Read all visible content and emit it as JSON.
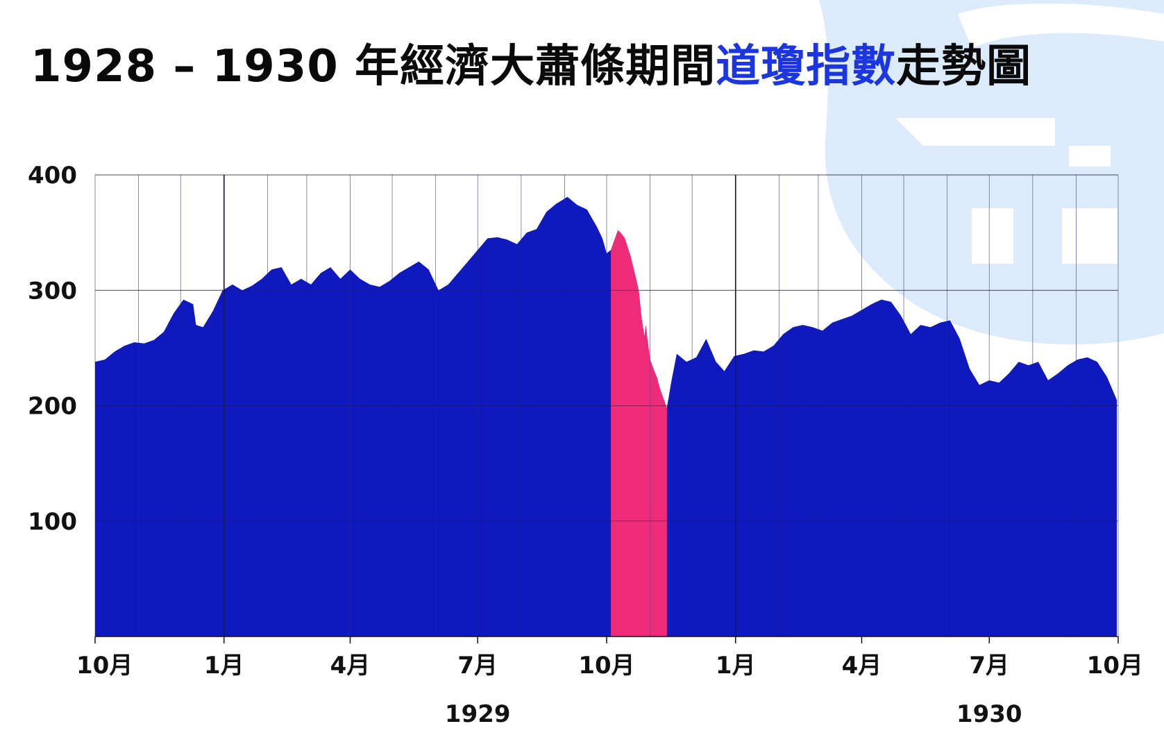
{
  "title": {
    "part1": "1928 – 1930 年經濟大蕭條期間",
    "highlight": "道瓊指數",
    "part2": "走勢圖"
  },
  "colors": {
    "area": "#0f19bd",
    "crash": "#ee2b78",
    "title_highlight": "#1b35e0",
    "watermark": "#dcebfb",
    "grid": "#9a9aaa"
  },
  "chart_data": {
    "type": "area",
    "title": "1928 – 1930 年經濟大蕭條期間道瓊指數走勢圖",
    "xlabel": "",
    "ylabel": "",
    "ylim": [
      0,
      400
    ],
    "y_ticks": [
      100,
      200,
      300,
      400
    ],
    "y_tick_labels": [
      "100",
      "200",
      "300",
      "400"
    ],
    "x_ticks": [
      {
        "label": "10月",
        "date": "1928-10-01"
      },
      {
        "label": "1月",
        "date": "1929-01-01"
      },
      {
        "label": "4月",
        "date": "1929-04-01"
      },
      {
        "label": "7月",
        "date": "1929-07-01"
      },
      {
        "label": "10月",
        "date": "1929-10-01"
      },
      {
        "label": "1月",
        "date": "1930-01-01"
      },
      {
        "label": "4月",
        "date": "1930-04-01"
      },
      {
        "label": "7月",
        "date": "1930-07-01"
      },
      {
        "label": "10月",
        "date": "1930-10-01"
      }
    ],
    "year_labels": [
      {
        "label": "1929",
        "date": "1929-07-01"
      },
      {
        "label": "1930",
        "date": "1930-07-01"
      }
    ],
    "grid": true,
    "crash_highlight": {
      "start": "1929-10-04",
      "end": "1929-11-13"
    },
    "series": [
      {
        "points": [
          [
            "1928-10-01",
            238
          ],
          [
            "1928-10-08",
            240
          ],
          [
            "1928-10-15",
            247
          ],
          [
            "1928-10-22",
            252
          ],
          [
            "1928-10-29",
            255
          ],
          [
            "1928-11-05",
            254
          ],
          [
            "1928-11-12",
            257
          ],
          [
            "1928-11-19",
            264
          ],
          [
            "1928-11-26",
            280
          ],
          [
            "1928-12-03",
            292
          ],
          [
            "1928-12-10",
            288
          ],
          [
            "1928-12-12",
            270
          ],
          [
            "1928-12-17",
            268
          ],
          [
            "1928-12-24",
            282
          ],
          [
            "1928-12-31",
            300
          ],
          [
            "1929-01-07",
            305
          ],
          [
            "1929-01-14",
            300
          ],
          [
            "1929-01-21",
            304
          ],
          [
            "1929-01-28",
            310
          ],
          [
            "1929-02-04",
            318
          ],
          [
            "1929-02-11",
            320
          ],
          [
            "1929-02-18",
            305
          ],
          [
            "1929-02-25",
            310
          ],
          [
            "1929-03-04",
            305
          ],
          [
            "1929-03-11",
            315
          ],
          [
            "1929-03-18",
            320
          ],
          [
            "1929-03-25",
            310
          ],
          [
            "1929-04-01",
            318
          ],
          [
            "1929-04-08",
            310
          ],
          [
            "1929-04-15",
            305
          ],
          [
            "1929-04-22",
            303
          ],
          [
            "1929-04-29",
            308
          ],
          [
            "1929-05-06",
            315
          ],
          [
            "1929-05-13",
            320
          ],
          [
            "1929-05-20",
            325
          ],
          [
            "1929-05-27",
            318
          ],
          [
            "1929-06-03",
            300
          ],
          [
            "1929-06-10",
            305
          ],
          [
            "1929-06-17",
            315
          ],
          [
            "1929-06-24",
            325
          ],
          [
            "1929-07-01",
            335
          ],
          [
            "1929-07-08",
            345
          ],
          [
            "1929-07-15",
            346
          ],
          [
            "1929-07-22",
            344
          ],
          [
            "1929-07-29",
            340
          ],
          [
            "1929-08-05",
            350
          ],
          [
            "1929-08-12",
            353
          ],
          [
            "1929-08-19",
            368
          ],
          [
            "1929-08-26",
            375
          ],
          [
            "1929-09-03",
            381
          ],
          [
            "1929-09-10",
            374
          ],
          [
            "1929-09-17",
            370
          ],
          [
            "1929-09-24",
            355
          ],
          [
            "1929-09-28",
            345
          ],
          [
            "1929-10-01",
            332
          ],
          [
            "1929-10-04",
            335
          ],
          [
            "1929-10-09",
            352
          ],
          [
            "1929-10-11",
            350
          ],
          [
            "1929-10-14",
            345
          ],
          [
            "1929-10-18",
            330
          ],
          [
            "1929-10-22",
            310
          ],
          [
            "1929-10-24",
            299
          ],
          [
            "1929-10-26",
            275
          ],
          [
            "1929-10-28",
            260
          ],
          [
            "1929-10-29",
            270
          ],
          [
            "1929-10-30",
            258
          ],
          [
            "1929-11-01",
            240
          ],
          [
            "1929-11-04",
            230
          ],
          [
            "1929-11-06",
            224
          ],
          [
            "1929-11-08",
            215
          ],
          [
            "1929-11-13",
            198
          ],
          [
            "1929-11-16",
            220
          ],
          [
            "1929-11-20",
            245
          ],
          [
            "1929-11-27",
            238
          ],
          [
            "1929-12-04",
            242
          ],
          [
            "1929-12-11",
            258
          ],
          [
            "1929-12-18",
            238
          ],
          [
            "1929-12-24",
            230
          ],
          [
            "1929-12-31",
            243
          ],
          [
            "1930-01-07",
            245
          ],
          [
            "1930-01-14",
            248
          ],
          [
            "1930-01-21",
            247
          ],
          [
            "1930-01-28",
            252
          ],
          [
            "1930-02-04",
            262
          ],
          [
            "1930-02-11",
            268
          ],
          [
            "1930-02-18",
            270
          ],
          [
            "1930-02-25",
            268
          ],
          [
            "1930-03-04",
            265
          ],
          [
            "1930-03-11",
            272
          ],
          [
            "1930-03-18",
            275
          ],
          [
            "1930-03-25",
            278
          ],
          [
            "1930-04-01",
            283
          ],
          [
            "1930-04-08",
            288
          ],
          [
            "1930-04-15",
            292
          ],
          [
            "1930-04-22",
            290
          ],
          [
            "1930-04-29",
            278
          ],
          [
            "1930-05-06",
            262
          ],
          [
            "1930-05-13",
            270
          ],
          [
            "1930-05-20",
            268
          ],
          [
            "1930-05-27",
            272
          ],
          [
            "1930-06-03",
            274
          ],
          [
            "1930-06-10",
            258
          ],
          [
            "1930-06-17",
            232
          ],
          [
            "1930-06-24",
            218
          ],
          [
            "1930-07-01",
            222
          ],
          [
            "1930-07-08",
            220
          ],
          [
            "1930-07-15",
            228
          ],
          [
            "1930-07-22",
            238
          ],
          [
            "1930-07-29",
            235
          ],
          [
            "1930-08-05",
            238
          ],
          [
            "1930-08-12",
            222
          ],
          [
            "1930-08-19",
            228
          ],
          [
            "1930-08-26",
            235
          ],
          [
            "1930-09-02",
            240
          ],
          [
            "1930-09-09",
            242
          ],
          [
            "1930-09-16",
            238
          ],
          [
            "1930-09-23",
            225
          ],
          [
            "1930-09-30",
            205
          ]
        ]
      }
    ]
  }
}
